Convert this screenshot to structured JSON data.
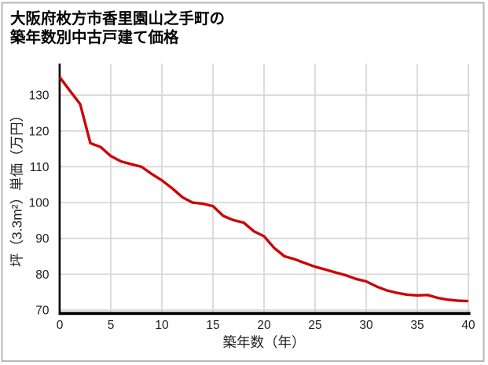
{
  "colors": {
    "line": "#cc0606",
    "grid": "#d8d8d8",
    "axis": "#000000",
    "text": "#1e1e1e",
    "border": "#b7b7b7",
    "background": "#ffffff"
  },
  "chart_data": {
    "type": "line",
    "title": "大阪府枚方市香里園山之手町の築年数別中古戸建て価格",
    "title_lines": [
      "大阪府枚方市香里園山之手町の",
      "築年数別中古戸建て価格"
    ],
    "xlabel": "築年数（年）",
    "ylabel": "坪（3.3m²）単価（万円）",
    "xlim": [
      0,
      40
    ],
    "ylim": [
      70,
      138.8
    ],
    "x_ticks": [
      0,
      5,
      10,
      15,
      20,
      25,
      30,
      35,
      40
    ],
    "y_ticks": [
      70,
      80,
      90,
      100,
      110,
      120,
      130
    ],
    "grid": true,
    "legend": "none",
    "x": [
      0,
      1,
      2,
      3,
      4,
      5,
      6,
      7,
      8,
      9,
      10,
      11,
      12,
      13,
      14,
      15,
      16,
      17,
      18,
      19,
      20,
      21,
      22,
      23,
      24,
      25,
      26,
      27,
      28,
      29,
      30,
      31,
      32,
      33,
      34,
      35,
      36,
      37,
      38,
      39,
      40
    ],
    "values": [
      135.0,
      131.2,
      127.5,
      116.6,
      115.5,
      113.0,
      111.5,
      110.7,
      110.0,
      108.0,
      106.2,
      104.0,
      101.5,
      100.0,
      99.7,
      99.0,
      96.3,
      95.1,
      94.4,
      92.0,
      90.6,
      87.3,
      85.0,
      84.2,
      83.1,
      82.1,
      81.3,
      80.5,
      79.7,
      78.7,
      78.0,
      76.6,
      75.5,
      74.8,
      74.3,
      74.1,
      74.2,
      73.4,
      72.9,
      72.6,
      72.5
    ]
  }
}
